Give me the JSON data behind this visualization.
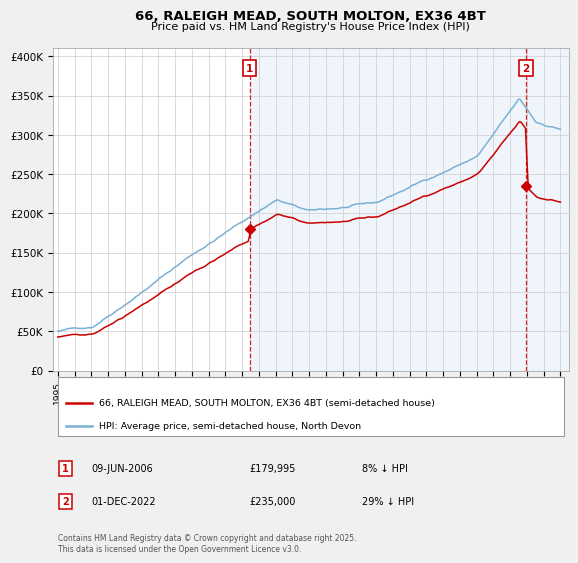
{
  "title": "66, RALEIGH MEAD, SOUTH MOLTON, EX36 4BT",
  "subtitle": "Price paid vs. HM Land Registry's House Price Index (HPI)",
  "ylabel_ticks": [
    "£0",
    "£50K",
    "£100K",
    "£150K",
    "£200K",
    "£250K",
    "£300K",
    "£350K",
    "£400K"
  ],
  "ytick_values": [
    0,
    50000,
    100000,
    150000,
    200000,
    250000,
    300000,
    350000,
    400000
  ],
  "ylim": [
    0,
    410000
  ],
  "xlim_start": 1994.7,
  "xlim_end": 2025.5,
  "marker1_date": 2006.44,
  "marker2_date": 2022.92,
  "marker1_price": 179995,
  "marker2_price": 235000,
  "line_color_red": "#cc0000",
  "line_color_blue": "#7ab0d4",
  "annotation_box_color": "#cc0000",
  "fill_color": "#ddeeff",
  "legend_line1": "66, RALEIGH MEAD, SOUTH MOLTON, EX36 4BT (semi-detached house)",
  "legend_line2": "HPI: Average price, semi-detached house, North Devon",
  "footer_text": "Contains HM Land Registry data © Crown copyright and database right 2025.\nThis data is licensed under the Open Government Licence v3.0.",
  "bg_color": "#f0f0f0",
  "plot_bg_color": "#ffffff",
  "grid_color": "#cccccc"
}
